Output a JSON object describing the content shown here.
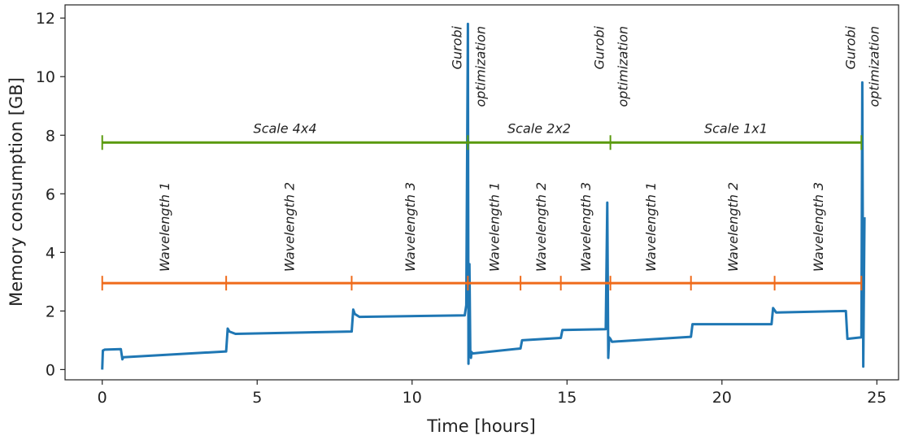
{
  "chart_data": {
    "type": "line",
    "title": "",
    "xlabel": "Time [hours]",
    "ylabel": "Memory consumption [GB]",
    "xlim": [
      -1.2,
      25.7
    ],
    "ylim": [
      -0.35,
      12.45
    ],
    "xticks": [
      0,
      5,
      10,
      15,
      20,
      25
    ],
    "yticks": [
      0,
      2,
      4,
      6,
      8,
      10,
      12
    ],
    "grid": false,
    "colors": {
      "series": "#1f77b4",
      "scale_bar": "#5a9a0e",
      "wavelength_bar": "#ef6a1a"
    },
    "series": [
      {
        "x": [
          0,
          0.02,
          0.08,
          0.6,
          0.65,
          0.68,
          4.0,
          4.05,
          4.1,
          4.3,
          8.05,
          8.1,
          8.15,
          8.3,
          11.7,
          11.75,
          11.8,
          11.82,
          11.85,
          11.88,
          11.9,
          11.92,
          11.95,
          13.5,
          13.55,
          14.8,
          14.85,
          16.25,
          16.3,
          16.33,
          16.36,
          16.4,
          16.45,
          19.0,
          19.05,
          21.6,
          21.65,
          21.75,
          24.0,
          24.05,
          24.5,
          24.53,
          24.56,
          24.6
        ],
        "y": [
          0.0,
          0.65,
          0.68,
          0.7,
          0.35,
          0.42,
          0.62,
          1.4,
          1.3,
          1.22,
          1.3,
          2.05,
          1.9,
          1.8,
          1.85,
          2.2,
          11.8,
          0.2,
          3.6,
          0.5,
          0.4,
          0.6,
          0.55,
          0.72,
          1.0,
          1.08,
          1.35,
          1.38,
          5.7,
          0.4,
          1.1,
          1.05,
          0.95,
          1.12,
          1.55,
          1.55,
          2.1,
          1.95,
          2.0,
          1.05,
          1.1,
          9.8,
          0.1,
          5.2
        ]
      }
    ],
    "annotations": {
      "scale_bar": {
        "y": 7.75,
        "breaks": [
          0,
          11.8,
          16.4,
          24.5
        ],
        "labels": [
          "Scale 4x4",
          "Scale 2x2",
          "Scale 1x1"
        ]
      },
      "wavelength_bar": {
        "y": 2.95,
        "breaks": [
          0,
          4.0,
          8.05,
          11.8,
          13.5,
          14.8,
          16.4,
          19.0,
          21.7,
          24.5
        ],
        "labels": [
          "Wavelength 1",
          "Wavelength 2",
          "Wavelength 3",
          "Wavelength 1",
          "Wavelength 2",
          "Wavelength 3",
          "Wavelength 1",
          "Wavelength 2",
          "Wavelength 3"
        ]
      },
      "gurobi_labels": [
        {
          "x": 11.8,
          "line1": "Gurobi",
          "line2": "optimization"
        },
        {
          "x": 16.4,
          "line1": "Gurobi",
          "line2": "optimization"
        },
        {
          "x": 24.5,
          "line1": "Gurobi",
          "line2": "optimization"
        }
      ]
    }
  }
}
